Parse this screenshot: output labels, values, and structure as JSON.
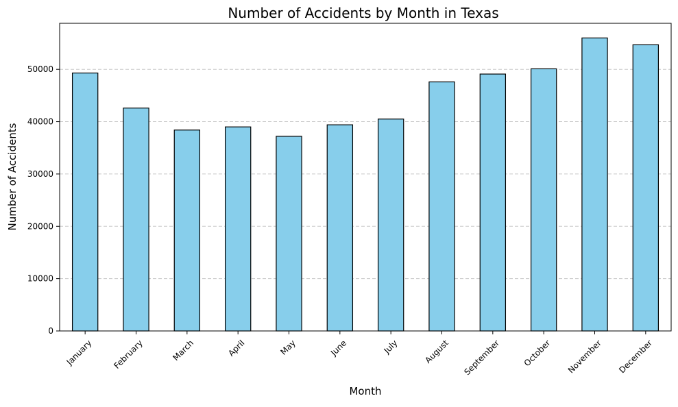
{
  "chart_data": {
    "type": "bar",
    "title": "Number of Accidents by Month in Texas",
    "xlabel": "Month",
    "ylabel": "Number of Accidents",
    "categories": [
      "January",
      "February",
      "March",
      "April",
      "May",
      "June",
      "July",
      "August",
      "September",
      "October",
      "November",
      "December"
    ],
    "values": [
      49300,
      42600,
      38400,
      39000,
      37200,
      39400,
      40500,
      47600,
      49100,
      50100,
      56000,
      54700
    ],
    "ylim": [
      0,
      58800
    ],
    "yticks": [
      0,
      10000,
      20000,
      30000,
      40000,
      50000
    ],
    "grid": "y-dashed",
    "bar_color": "#87CEEB",
    "edge_color": "#000000",
    "grid_color": "#c8c8c8"
  }
}
